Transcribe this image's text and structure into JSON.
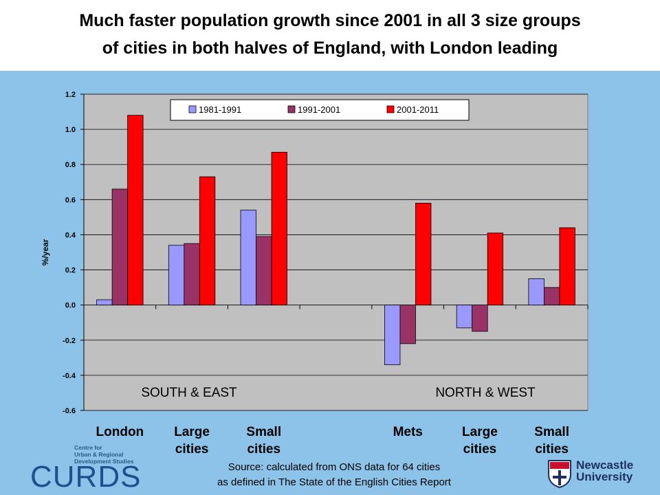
{
  "title": {
    "line1": "Much faster population growth since 2001 in all 3 size groups",
    "line2": "of cities in both halves of England, with London leading"
  },
  "chart_data": {
    "type": "bar",
    "ylabel": "%/year",
    "ylim": [
      -0.6,
      1.2
    ],
    "yticks": [
      "1.2",
      "1.0",
      "0.8",
      "0.6",
      "0.4",
      "0.2",
      "0.0",
      "-0.2",
      "-0.4",
      "-0.6"
    ],
    "grid": true,
    "legend_position": "top",
    "groups": [
      {
        "label": [
          "London"
        ]
      },
      {
        "label": [
          "Large",
          "cities"
        ]
      },
      {
        "label": [
          "Small",
          "cities"
        ]
      },
      {
        "label": [
          ""
        ]
      },
      {
        "label": [
          "Mets"
        ]
      },
      {
        "label": [
          "Large",
          "cities"
        ]
      },
      {
        "label": [
          "Small",
          "cities"
        ]
      }
    ],
    "series": [
      {
        "name": "1981-1991",
        "color": "#9999ff",
        "values": [
          0.03,
          0.34,
          0.54,
          null,
          -0.34,
          -0.13,
          0.15
        ]
      },
      {
        "name": "1991-2001",
        "color": "#993366",
        "values": [
          0.66,
          0.35,
          0.39,
          null,
          -0.22,
          -0.15,
          0.1
        ]
      },
      {
        "name": "2001-2011",
        "color": "#ff0000",
        "values": [
          1.08,
          0.73,
          0.87,
          null,
          0.58,
          0.41,
          0.44
        ]
      }
    ],
    "annotations": [
      "SOUTH & EAST",
      "NORTH & WEST"
    ]
  },
  "source": {
    "line1": "Source: calculated from ONS data for 64 cities",
    "line2": "as defined in The State of the English Cities Report"
  },
  "logos": {
    "curds_small": [
      "Centre for",
      "Urban & Regional",
      "Development Studies"
    ],
    "curds": "CURDS",
    "university": [
      "Newcastle",
      "University"
    ]
  }
}
